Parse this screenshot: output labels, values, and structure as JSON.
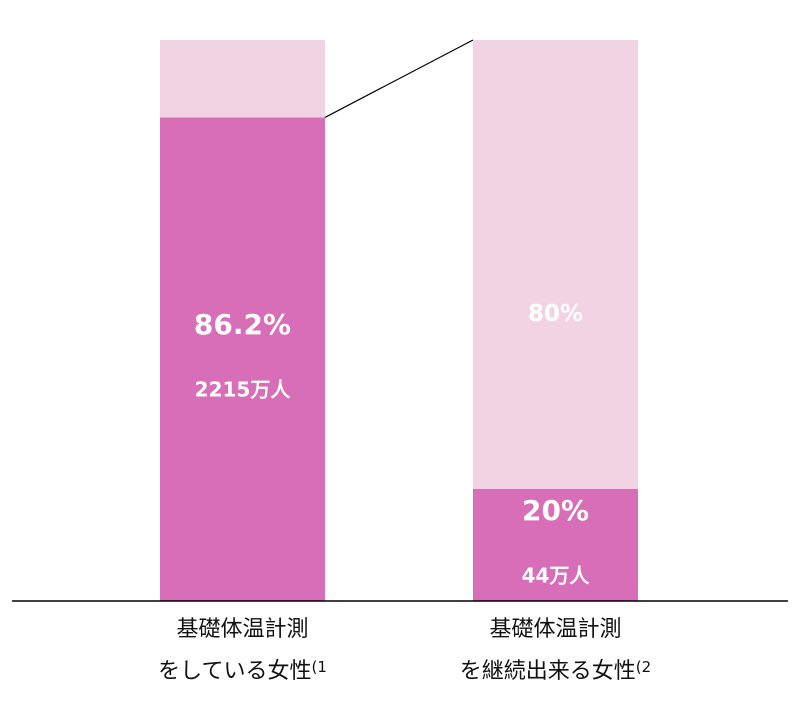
{
  "chart_data": {
    "type": "stacked_bar",
    "categories": [
      [
        "基礎体温計測",
        "をしている女性"
      ],
      [
        "基礎体温計測",
        "を継続出来る女性"
      ]
    ],
    "category_notes": [
      "(1",
      "(2"
    ],
    "ylim": [
      0,
      100
    ],
    "series": [
      {
        "color": "#d86db8",
        "values": [
          86.2,
          20
        ],
        "value_labels": [
          "86.2%",
          "20%"
        ],
        "sub_labels": [
          "2215万人",
          "44万人"
        ]
      },
      {
        "color": "#f2d3e4",
        "values": [
          13.8,
          80
        ],
        "value_labels": [
          null,
          "80%"
        ]
      }
    ]
  }
}
